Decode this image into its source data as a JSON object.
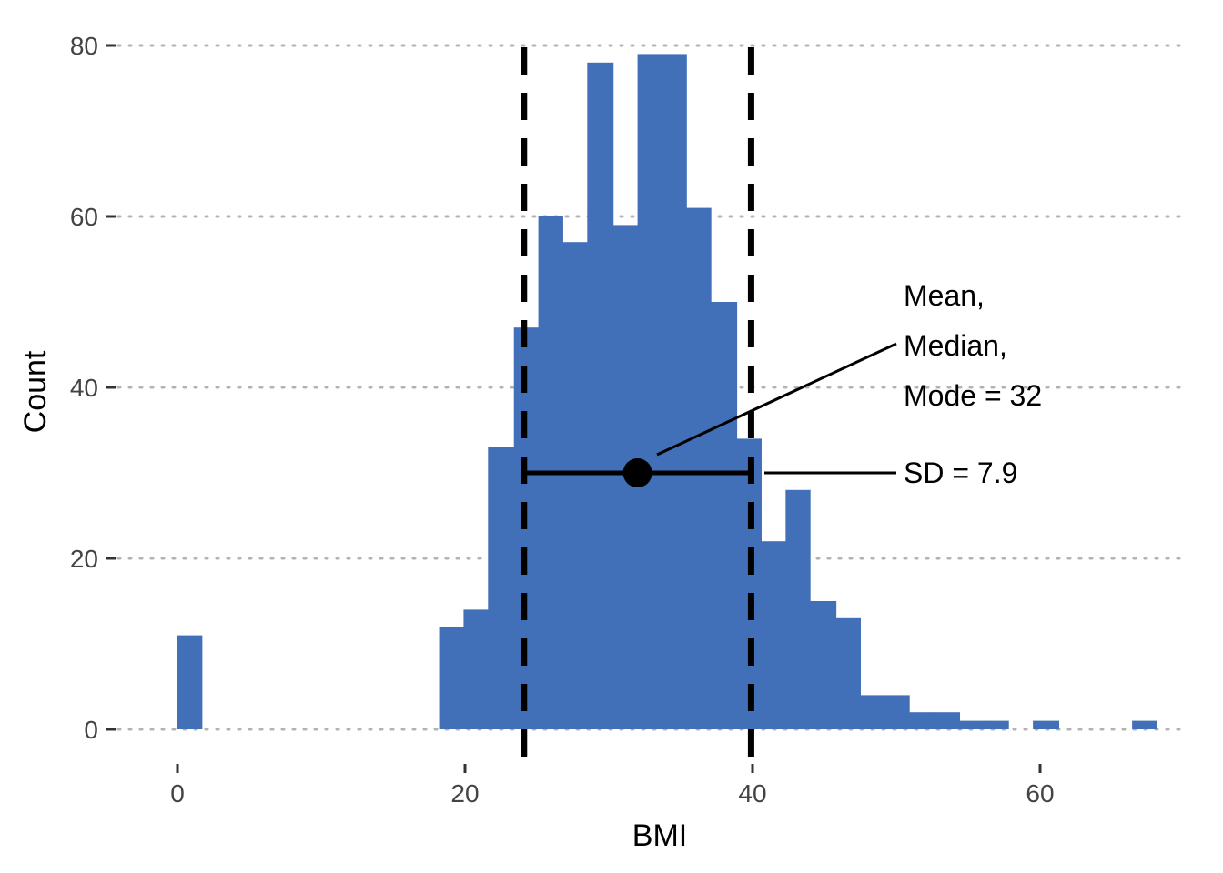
{
  "chart_data": {
    "type": "histogram",
    "xlabel": "BMI",
    "ylabel": "Count",
    "xlim": [
      -4.4,
      69.6
    ],
    "ylim": [
      -4,
      80
    ],
    "x_ticks": [
      0,
      20,
      40,
      60
    ],
    "y_ticks": [
      0,
      20,
      40,
      60,
      80
    ],
    "grid": "horizontal dotted",
    "bin_width": 1.7,
    "bins": [
      {
        "x0": 0.0,
        "x1": 1.7,
        "count": 11
      },
      {
        "x0": 18.2,
        "x1": 19.9,
        "count": 12
      },
      {
        "x0": 19.9,
        "x1": 21.6,
        "count": 14
      },
      {
        "x0": 21.6,
        "x1": 23.4,
        "count": 33
      },
      {
        "x0": 23.4,
        "x1": 25.1,
        "count": 47
      },
      {
        "x0": 25.1,
        "x1": 26.8,
        "count": 60
      },
      {
        "x0": 26.8,
        "x1": 28.5,
        "count": 57
      },
      {
        "x0": 28.5,
        "x1": 30.3,
        "count": 78
      },
      {
        "x0": 30.3,
        "x1": 32.0,
        "count": 59
      },
      {
        "x0": 32.0,
        "x1": 33.7,
        "count": 79
      },
      {
        "x0": 33.7,
        "x1": 35.4,
        "count": 79
      },
      {
        "x0": 35.4,
        "x1": 37.1,
        "count": 61
      },
      {
        "x0": 37.1,
        "x1": 38.9,
        "count": 50
      },
      {
        "x0": 38.9,
        "x1": 40.6,
        "count": 34
      },
      {
        "x0": 40.6,
        "x1": 42.3,
        "count": 22
      },
      {
        "x0": 42.3,
        "x1": 44.0,
        "count": 28
      },
      {
        "x0": 44.0,
        "x1": 45.8,
        "count": 15
      },
      {
        "x0": 45.8,
        "x1": 47.5,
        "count": 13
      },
      {
        "x0": 47.5,
        "x1": 49.2,
        "count": 4
      },
      {
        "x0": 49.2,
        "x1": 50.9,
        "count": 4
      },
      {
        "x0": 50.9,
        "x1": 52.6,
        "count": 2
      },
      {
        "x0": 52.6,
        "x1": 54.4,
        "count": 2
      },
      {
        "x0": 54.4,
        "x1": 56.1,
        "count": 1
      },
      {
        "x0": 56.1,
        "x1": 57.8,
        "count": 1
      },
      {
        "x0": 59.5,
        "x1": 61.3,
        "count": 1
      },
      {
        "x0": 66.4,
        "x1": 68.1,
        "count": 1
      }
    ],
    "mean": 32,
    "sd": 7.9,
    "sd_lines": [
      24.1,
      39.9
    ],
    "point_y": 30,
    "annotations": {
      "center_lines": [
        "Mean,",
        "Median,",
        "Mode = 32"
      ],
      "sd_label": "SD = 7.9"
    },
    "colors": {
      "bar": "#4170b8",
      "lines": "#000000",
      "grid": "#b3b3b3"
    }
  }
}
